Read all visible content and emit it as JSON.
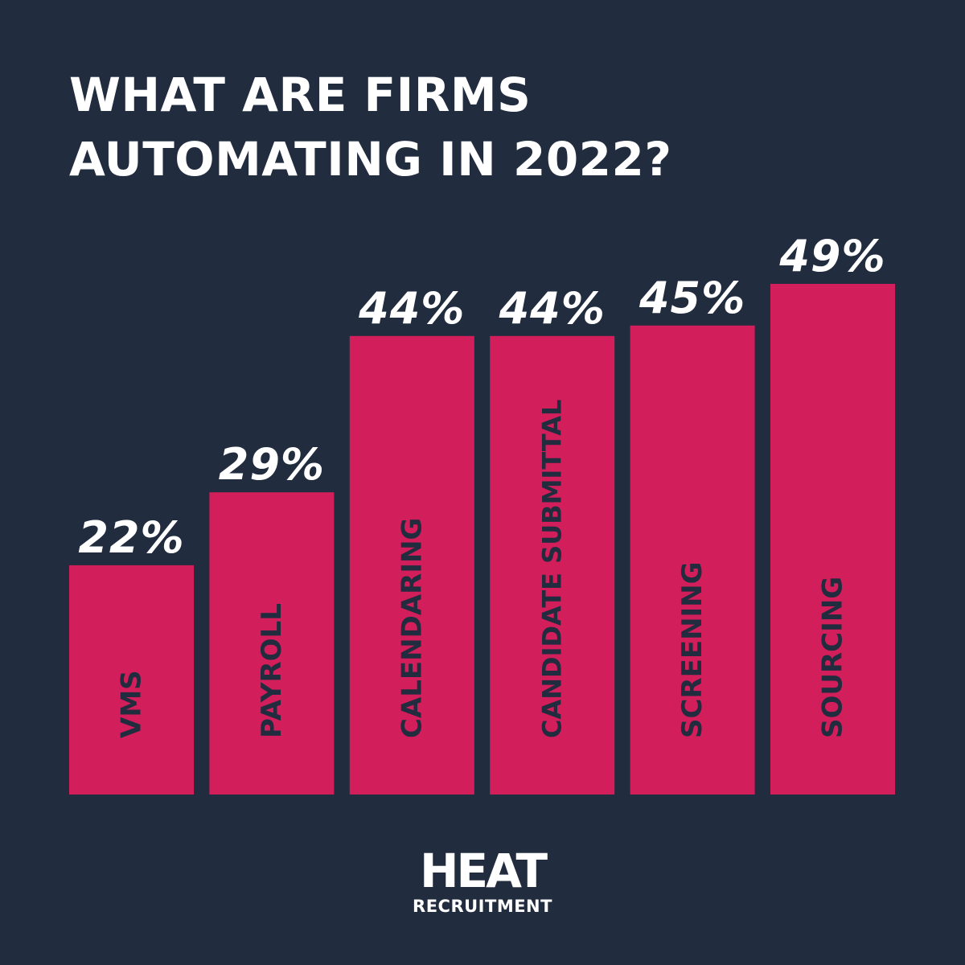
{
  "title": {
    "line1": "WHAT ARE FIRMS",
    "line2": "AUTOMATING IN 2022?"
  },
  "colors": {
    "background": "#212c3f",
    "bar": "#d21e5a",
    "text": "#ffffff",
    "bar_label": "#212c3f"
  },
  "chart_data": {
    "type": "bar",
    "title": "WHAT ARE FIRMS AUTOMATING IN 2022?",
    "categories": [
      "VMS",
      "PAYROLL",
      "CALENDARING",
      "CANDIDATE SUBMITTAL",
      "SCREENING",
      "SOURCING"
    ],
    "values": [
      22,
      29,
      44,
      44,
      45,
      49
    ],
    "value_labels": [
      "22%",
      "29%",
      "44%",
      "44%",
      "45%",
      "49%"
    ],
    "unit": "%",
    "ylim": [
      0,
      49
    ],
    "grid": false,
    "legend": "none",
    "category_label_orientation": "vertical, inside bars"
  },
  "logo": {
    "word": "HEAT",
    "sub": "RECRUITMENT"
  }
}
